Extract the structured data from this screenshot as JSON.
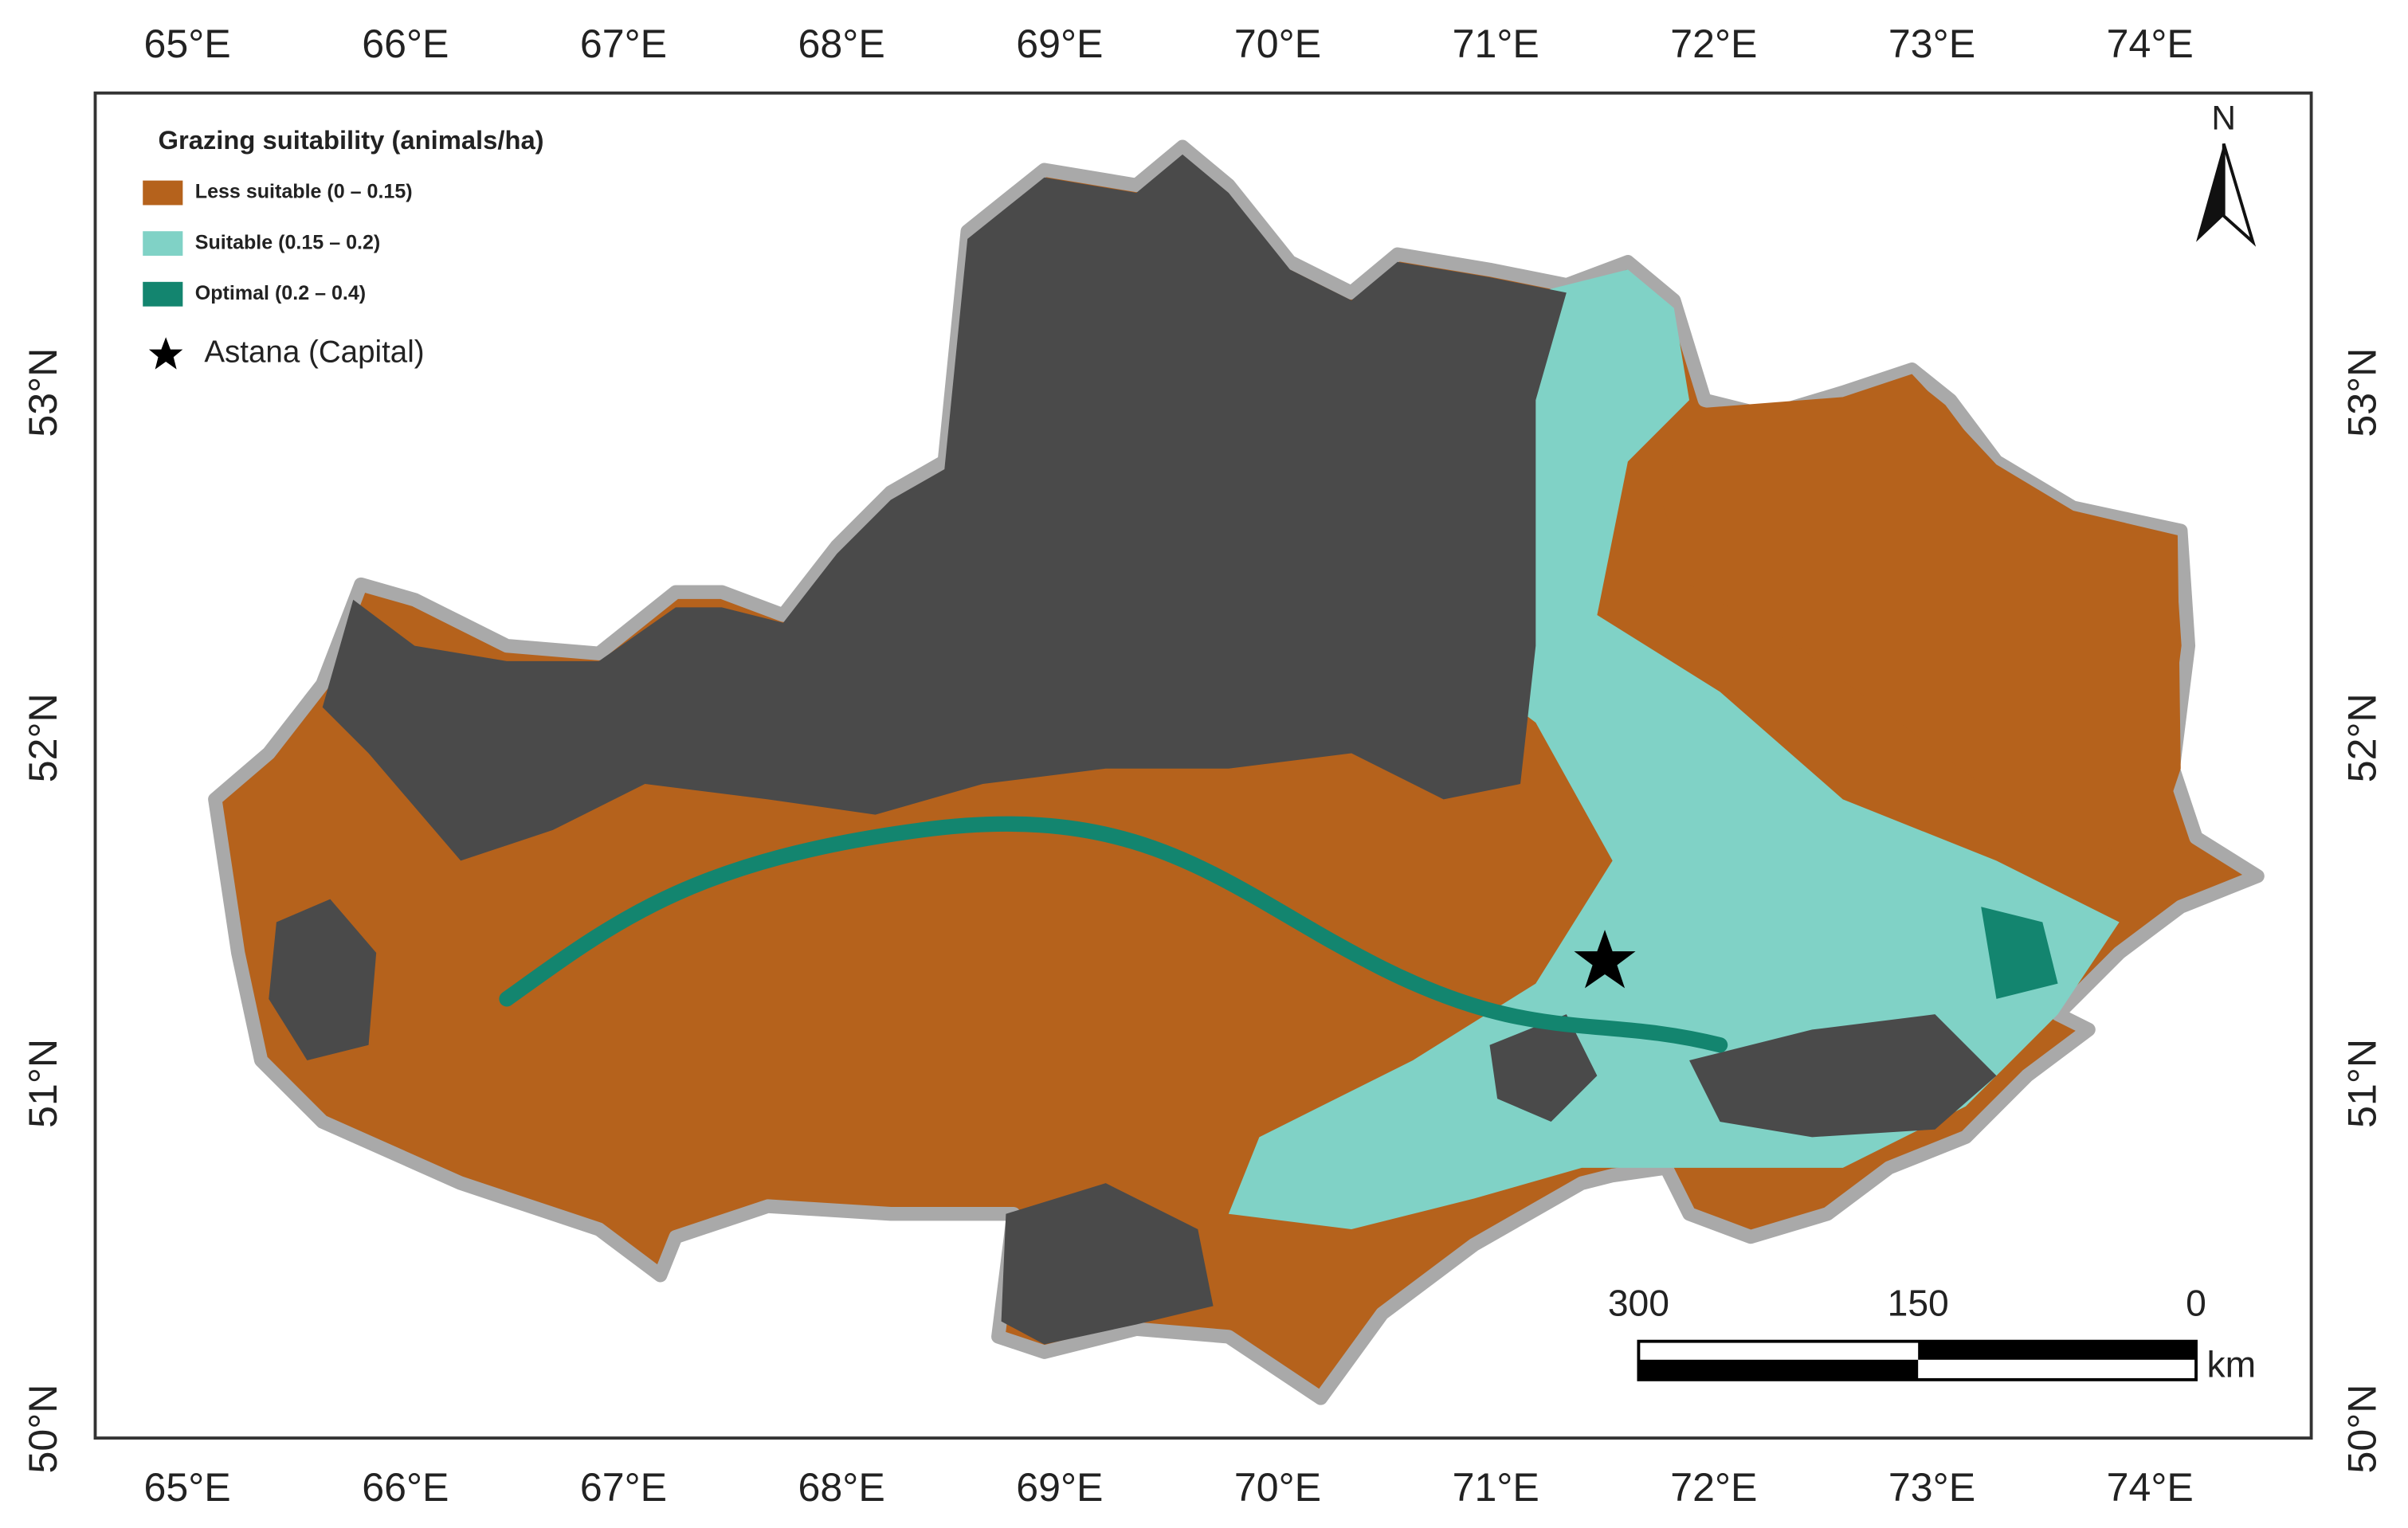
{
  "map": {
    "longitude_labels": [
      "65°E",
      "66°E",
      "67°E",
      "68°E",
      "69°E",
      "70°E",
      "71°E",
      "72°E",
      "73°E",
      "74°E"
    ],
    "latitude_labels": [
      "53°N",
      "52°N",
      "51°N",
      "50°N"
    ],
    "legend": {
      "title": "Grazing suitability (animals/ha)",
      "items": [
        {
          "label": "Less suitable (0 – 0.15)",
          "color": "#b5621c"
        },
        {
          "label": "Suitable (0.15 – 0.2)",
          "color": "#80d2c6"
        },
        {
          "label": "Optimal (0.2 – 0.4)",
          "color": "#13856f"
        }
      ],
      "capital": "Astana (Capital)"
    },
    "north": "N",
    "scale_bar": {
      "labels": [
        "300",
        "150",
        "0"
      ],
      "unit": "km"
    }
  }
}
